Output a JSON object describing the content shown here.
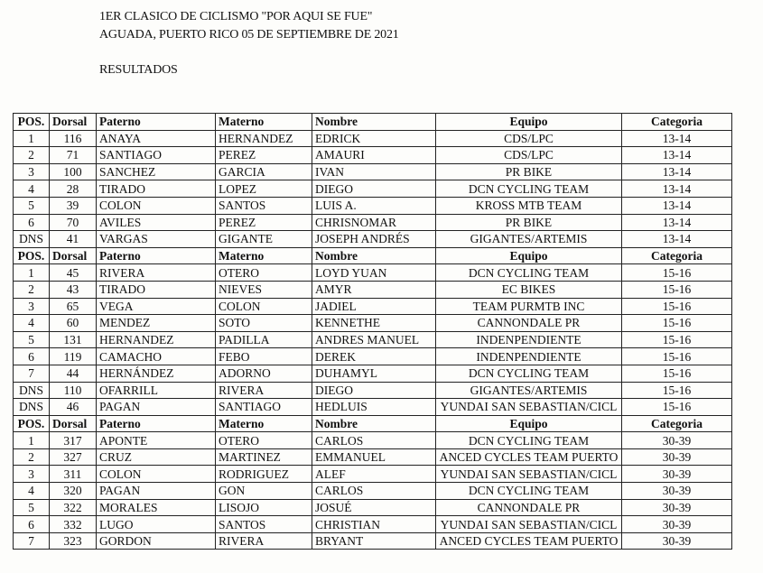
{
  "document": {
    "title_line1": "1ER CLASICO DE CICLISMO \"POR AQUI SE FUE\"",
    "title_line2": "AGUADA, PUERTO RICO   05 DE SEPTIEMBRE DE 2021",
    "subtitle": "RESULTADOS"
  },
  "columns": [
    "POS.",
    "Dorsal",
    "Paterno",
    "Materno",
    "Nombre",
    "Equipo",
    "Categoria"
  ],
  "sections": [
    {
      "rows": [
        [
          "1",
          "116",
          "ANAYA",
          "HERNANDEZ",
          "EDRICK",
          "CDS/LPC",
          "13-14"
        ],
        [
          "2",
          "71",
          "SANTIAGO",
          "PEREZ",
          "AMAURI",
          "CDS/LPC",
          "13-14"
        ],
        [
          "3",
          "100",
          "SANCHEZ",
          "GARCIA",
          "IVAN",
          "PR BIKE",
          "13-14"
        ],
        [
          "4",
          "28",
          "TIRADO",
          "LOPEZ",
          "DIEGO",
          "DCN CYCLING TEAM",
          "13-14"
        ],
        [
          "5",
          "39",
          "COLON",
          "SANTOS",
          "LUIS A.",
          "KROSS MTB TEAM",
          "13-14"
        ],
        [
          "6",
          "70",
          "AVILES",
          "PEREZ",
          "CHRISNOMAR",
          "PR BIKE",
          "13-14"
        ],
        [
          "DNS",
          "41",
          "VARGAS",
          "GIGANTE",
          "JOSEPH ANDRÉS",
          "GIGANTES/ARTEMIS",
          "13-14"
        ]
      ]
    },
    {
      "rows": [
        [
          "1",
          "45",
          "RIVERA",
          "OTERO",
          "LOYD YUAN",
          "DCN CYCLING TEAM",
          "15-16"
        ],
        [
          "2",
          "43",
          "TIRADO",
          "NIEVES",
          "AMYR",
          "EC BIKES",
          "15-16"
        ],
        [
          "3",
          "65",
          "VEGA",
          "COLON",
          "JADIEL",
          "TEAM PURMTB INC",
          "15-16"
        ],
        [
          "4",
          "60",
          "MENDEZ",
          "SOTO",
          "KENNETHE",
          "CANNONDALE PR",
          "15-16"
        ],
        [
          "5",
          "131",
          "HERNANDEZ",
          "PADILLA",
          "ANDRES MANUEL",
          "INDENPENDIENTE",
          "15-16"
        ],
        [
          "6",
          "119",
          "CAMACHO",
          "FEBO",
          "DEREK",
          "INDENPENDIENTE",
          "15-16"
        ],
        [
          "7",
          "44",
          "HERNÁNDEZ",
          "ADORNO",
          "DUHAMYL",
          "DCN CYCLING TEAM",
          "15-16"
        ],
        [
          "DNS",
          "110",
          "OFARRILL",
          "RIVERA",
          "DIEGO",
          "GIGANTES/ARTEMIS",
          "15-16"
        ],
        [
          "DNS",
          "46",
          "PAGAN",
          "SANTIAGO",
          "HEDLUIS",
          "YUNDAI SAN SEBASTIAN/CICL",
          "15-16"
        ]
      ]
    },
    {
      "rows": [
        [
          "1",
          "317",
          "APONTE",
          "OTERO",
          "CARLOS",
          "DCN CYCLING TEAM",
          "30-39"
        ],
        [
          "2",
          "327",
          "CRUZ",
          "MARTINEZ",
          "EMMANUEL",
          "ANCED CYCLES TEAM PUERTO",
          "30-39"
        ],
        [
          "3",
          "311",
          "COLON",
          "RODRIGUEZ",
          "ALEF",
          "YUNDAI SAN SEBASTIAN/CICL",
          "30-39"
        ],
        [
          "4",
          "320",
          "PAGAN",
          "GON",
          "CARLOS",
          "DCN CYCLING TEAM",
          "30-39"
        ],
        [
          "5",
          "322",
          "MORALES",
          "LISOJO",
          "JOSUÉ",
          "CANNONDALE PR",
          "30-39"
        ],
        [
          "6",
          "332",
          "LUGO",
          "SANTOS",
          "CHRISTIAN",
          "YUNDAI SAN SEBASTIAN/CICL",
          "30-39"
        ],
        [
          "7",
          "323",
          "GORDON",
          "RIVERA",
          "BRYANT",
          "ANCED CYCLES TEAM PUERTO",
          "30-39"
        ]
      ]
    }
  ]
}
